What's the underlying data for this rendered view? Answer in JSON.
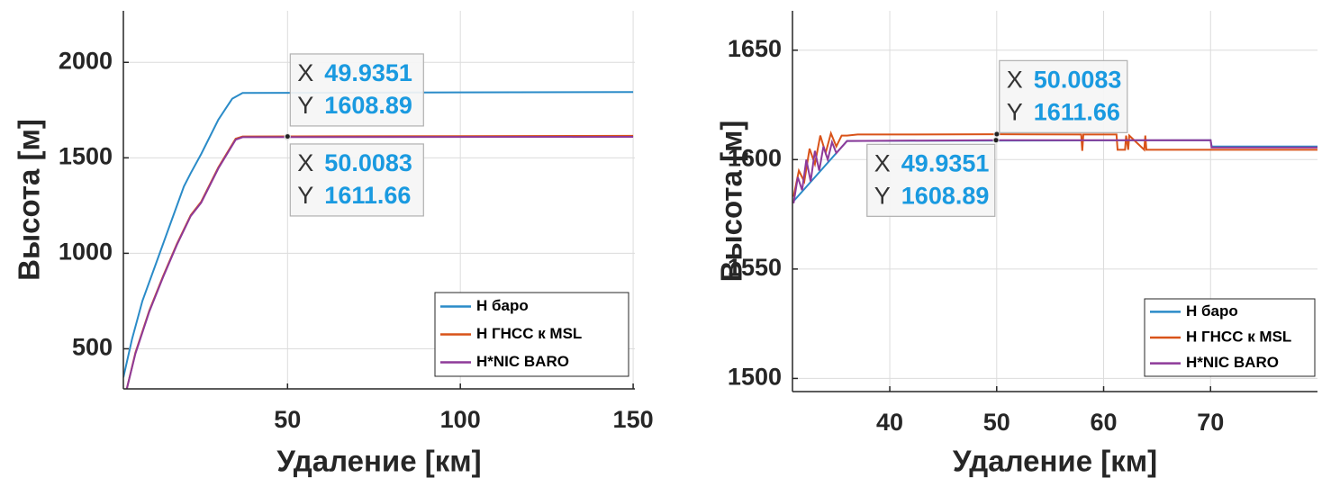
{
  "chart_data": [
    {
      "type": "line",
      "xlabel": "Удаление [км]",
      "ylabel": "Высота [м]",
      "xlim": [
        2.5,
        150.5
      ],
      "xticks": [
        50,
        100,
        150
      ],
      "ylim": [
        290,
        2270
      ],
      "yticks": [
        500,
        1000,
        1500,
        2000
      ],
      "grid": true,
      "legend": "lower right",
      "series": [
        {
          "name": "H баро",
          "color": "#2a8bc8",
          "x": [
            2.5,
            5,
            8,
            12,
            16,
            20,
            22,
            25,
            30,
            34,
            37,
            150
          ],
          "values": [
            350,
            550,
            750,
            950,
            1150,
            1350,
            1420,
            1520,
            1700,
            1810,
            1840,
            1845
          ]
        },
        {
          "name": "H ГНСС к MSL",
          "color": "#d95319",
          "x": [
            3.5,
            6,
            10,
            14,
            18,
            22,
            25,
            30,
            35,
            37,
            150
          ],
          "values": [
            290,
            480,
            700,
            880,
            1050,
            1200,
            1270,
            1450,
            1600,
            1612,
            1615
          ]
        },
        {
          "name": "H*NIC BARO",
          "color": "#8e3a99",
          "x": [
            3.5,
            6,
            10,
            14,
            18,
            22,
            25,
            30,
            35,
            37,
            150
          ],
          "values": [
            290,
            475,
            695,
            875,
            1045,
            1195,
            1265,
            1445,
            1595,
            1608,
            1610
          ]
        }
      ],
      "datatips": [
        {
          "x_label": "X",
          "x": 49.9351,
          "y_label": "Y",
          "y": 1608.89
        },
        {
          "x_label": "X",
          "x": 50.0083,
          "y_label": "Y",
          "y": 1611.66
        }
      ]
    },
    {
      "type": "line",
      "xlabel": "Удаление [км]",
      "ylabel": "Высота [м]",
      "xlim": [
        30.9,
        80
      ],
      "xticks": [
        40,
        50,
        60,
        70
      ],
      "ylim": [
        1494,
        1668
      ],
      "yticks": [
        1500,
        1550,
        1600,
        1650
      ],
      "grid": true,
      "legend": "lower right",
      "series": [
        {
          "name": "H баро",
          "color": "#2a8bc8",
          "x": [
            31,
            36,
            70,
            70.1,
            80
          ],
          "values": [
            1581,
            1608.5,
            1608.9,
            1606,
            1606
          ]
        },
        {
          "name": "H ГНСС к MSL",
          "color": "#d95319",
          "x": [
            31,
            31.5,
            32,
            32.5,
            33,
            33.5,
            34,
            34.5,
            35,
            35.5,
            36,
            37,
            40,
            50,
            57.9,
            58,
            58.1,
            61.2,
            61.3,
            62,
            62.1,
            62.3,
            62.4,
            63.8,
            63.9,
            64,
            80
          ],
          "values": [
            1583,
            1595,
            1590,
            1605,
            1598,
            1611,
            1603,
            1612,
            1606,
            1611,
            1611,
            1611.5,
            1611.5,
            1611.6,
            1611.5,
            1604,
            1611.5,
            1611.5,
            1604.5,
            1604.5,
            1611,
            1604.5,
            1611,
            1604.5,
            1611,
            1604.5,
            1604.5
          ]
        },
        {
          "name": "H*NIC BARO",
          "color": "#8e3a99",
          "x": [
            31,
            31.4,
            31.8,
            32.2,
            32.6,
            33,
            33.4,
            33.8,
            34.2,
            34.6,
            35,
            36,
            50,
            70,
            70.1,
            80
          ],
          "values": [
            1580,
            1592,
            1586,
            1600,
            1590,
            1604,
            1595,
            1606,
            1600,
            1608,
            1603,
            1608.5,
            1608.9,
            1608.9,
            1605.5,
            1605.5
          ]
        }
      ],
      "datatips": [
        {
          "x_label": "X",
          "x": 50.0083,
          "y_label": "Y",
          "y": 1611.66
        },
        {
          "x_label": "X",
          "x": 49.9351,
          "y_label": "Y",
          "y": 1608.89
        }
      ]
    }
  ]
}
